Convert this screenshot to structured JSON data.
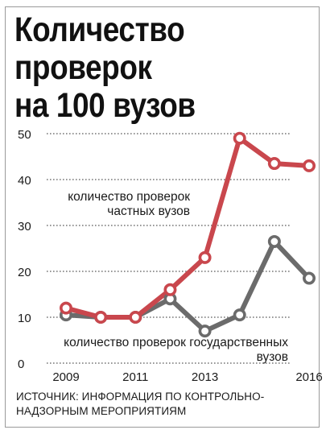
{
  "title": {
    "line1": "Количество",
    "line2": "проверок",
    "line3": "на 100 вузов"
  },
  "source": {
    "line1": "ИСТОЧНИК: ИНФОРМАЦИЯ ПО КОНТРОЛЬНО-",
    "line2": "НАДЗОРНЫМ МЕРОПРИЯТИЯМ"
  },
  "colors": {
    "private": "#c9474d",
    "state": "#6b6b6b",
    "grid": "#777777",
    "text": "#1a1a1a"
  },
  "chart_data": {
    "type": "line",
    "x": [
      2009,
      2010,
      2011,
      2012,
      2013,
      2014,
      2015,
      2016
    ],
    "x_ticks": [
      "2009",
      "2011",
      "2013",
      "2016"
    ],
    "x_tick_values": [
      2009,
      2011,
      2013,
      2016
    ],
    "y_ticks": [
      "0",
      "10",
      "20",
      "30",
      "40",
      "50"
    ],
    "y_tick_values": [
      0,
      10,
      20,
      30,
      40,
      50
    ],
    "ylim": [
      0,
      50
    ],
    "grid": true,
    "series": [
      {
        "name_line1": "количество проверок",
        "name_line2": "частных вузов",
        "values": [
          12,
          10,
          10,
          16,
          23,
          49,
          43.5,
          43
        ],
        "color": "#c9474d"
      },
      {
        "name_line1": "количество проверок государственных",
        "name_line2": "вузов",
        "values": [
          10.5,
          10,
          10,
          14,
          7,
          10.5,
          26.5,
          18.5
        ],
        "color": "#6b6b6b"
      }
    ]
  }
}
